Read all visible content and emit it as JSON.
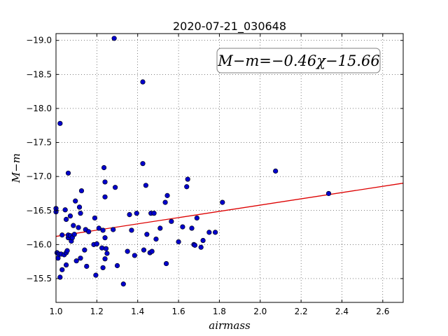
{
  "chart_data": {
    "type": "scatter",
    "title": "2020-07-21_030648",
    "xlabel": "airmass",
    "ylabel": "M−m",
    "xlim": [
      1.0,
      2.7
    ],
    "ylim": [
      -19.1,
      -15.15
    ],
    "y_inverted": true,
    "grid": true,
    "x_ticks": [
      "1.0",
      "1.2",
      "1.4",
      "1.6",
      "1.8",
      "2.0",
      "2.2",
      "2.4",
      "2.6"
    ],
    "y_ticks": [
      "−15.5",
      "−16.0",
      "−16.5",
      "−17.0",
      "−17.5",
      "−18.0",
      "−18.5",
      "−19.0"
    ],
    "annotation": "M−m=−0.46χ−15.66",
    "fit": {
      "slope": -0.46,
      "intercept": -15.66,
      "color": "#dd0000"
    },
    "point_color": "#0000cc",
    "points": [
      [
        1.0,
        -16.48
      ],
      [
        1.0,
        -16.53
      ],
      [
        1.005,
        -15.88
      ],
      [
        1.01,
        -15.8
      ],
      [
        1.015,
        -15.86
      ],
      [
        1.02,
        -15.52
      ],
      [
        1.025,
        -15.86
      ],
      [
        1.03,
        -15.63
      ],
      [
        1.03,
        -16.14
      ],
      [
        1.04,
        -15.85
      ],
      [
        1.045,
        -16.51
      ],
      [
        1.05,
        -15.7
      ],
      [
        1.05,
        -15.88
      ],
      [
        1.05,
        -16.37
      ],
      [
        1.055,
        -15.91
      ],
      [
        1.06,
        -16.1
      ],
      [
        1.06,
        -16.14
      ],
      [
        1.06,
        -17.05
      ],
      [
        1.07,
        -16.13
      ],
      [
        1.07,
        -16.42
      ],
      [
        1.075,
        -16.05
      ],
      [
        1.08,
        -16.1
      ],
      [
        1.085,
        -16.28
      ],
      [
        1.09,
        -16.15
      ],
      [
        1.095,
        -16.64
      ],
      [
        1.1,
        -15.76
      ],
      [
        1.11,
        -16.25
      ],
      [
        1.115,
        -16.55
      ],
      [
        1.12,
        -15.8
      ],
      [
        1.12,
        -16.46
      ],
      [
        1.125,
        -16.79
      ],
      [
        1.14,
        -15.92
      ],
      [
        1.145,
        -16.22
      ],
      [
        1.15,
        -15.68
      ],
      [
        1.16,
        -16.19
      ],
      [
        1.185,
        -16.0
      ],
      [
        1.19,
        -16.39
      ],
      [
        1.195,
        -15.55
      ],
      [
        1.2,
        -16.01
      ],
      [
        1.21,
        -16.24
      ],
      [
        1.225,
        -15.95
      ],
      [
        1.23,
        -15.66
      ],
      [
        1.23,
        -16.21
      ],
      [
        1.235,
        -17.13
      ],
      [
        1.24,
        -15.79
      ],
      [
        1.24,
        -16.1
      ],
      [
        1.24,
        -16.7
      ],
      [
        1.24,
        -16.92
      ],
      [
        1.245,
        -15.94
      ],
      [
        1.25,
        -15.87
      ],
      [
        1.28,
        -16.22
      ],
      [
        1.285,
        -19.03
      ],
      [
        1.29,
        -16.84
      ],
      [
        1.3,
        -15.69
      ],
      [
        1.33,
        -15.42
      ],
      [
        1.35,
        -15.9
      ],
      [
        1.36,
        -16.44
      ],
      [
        1.37,
        -16.21
      ],
      [
        1.385,
        -15.84
      ],
      [
        1.395,
        -16.46
      ],
      [
        1.425,
        -17.19
      ],
      [
        1.425,
        -18.39
      ],
      [
        1.43,
        -15.92
      ],
      [
        1.44,
        -16.87
      ],
      [
        1.445,
        -16.15
      ],
      [
        1.46,
        -15.88
      ],
      [
        1.465,
        -16.46
      ],
      [
        1.47,
        -15.9
      ],
      [
        1.48,
        -16.46
      ],
      [
        1.49,
        -16.08
      ],
      [
        1.51,
        -16.24
      ],
      [
        1.535,
        -16.62
      ],
      [
        1.54,
        -15.72
      ],
      [
        1.545,
        -16.72
      ],
      [
        1.565,
        -16.34
      ],
      [
        1.6,
        -16.04
      ],
      [
        1.62,
        -16.26
      ],
      [
        1.64,
        -16.85
      ],
      [
        1.645,
        -16.96
      ],
      [
        1.665,
        -16.24
      ],
      [
        1.675,
        -16.0
      ],
      [
        1.68,
        -15.99
      ],
      [
        1.69,
        -16.39
      ],
      [
        1.71,
        -15.96
      ],
      [
        1.72,
        -16.06
      ],
      [
        1.75,
        -16.18
      ],
      [
        1.78,
        -16.18
      ],
      [
        1.815,
        -16.62
      ],
      [
        2.075,
        -17.08
      ],
      [
        2.335,
        -16.75
      ],
      [
        1.02,
        -17.78
      ]
    ]
  }
}
